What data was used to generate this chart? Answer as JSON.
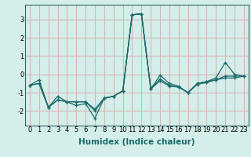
{
  "title": "",
  "xlabel": "Humidex (Indice chaleur)",
  "ylabel": "",
  "background_color": "#d4eeea",
  "grid_color": "#d4b8b8",
  "line_color": "#1a6b6b",
  "x": [
    0,
    1,
    2,
    3,
    4,
    5,
    6,
    7,
    8,
    9,
    10,
    11,
    12,
    13,
    14,
    15,
    16,
    17,
    18,
    19,
    20,
    21,
    22,
    23
  ],
  "series": [
    [
      -0.6,
      -0.3,
      -1.8,
      -1.2,
      -1.5,
      -1.7,
      -1.6,
      -2.4,
      -1.3,
      -1.2,
      -0.9,
      3.25,
      3.3,
      -0.8,
      -0.05,
      -0.5,
      -0.65,
      -1.0,
      -0.5,
      -0.4,
      -0.2,
      0.65,
      0.0,
      -0.1
    ],
    [
      -0.6,
      -0.5,
      -1.8,
      -1.4,
      -1.5,
      -1.5,
      -1.5,
      -1.9,
      -1.3,
      -1.2,
      -0.9,
      3.25,
      3.3,
      -0.8,
      -0.25,
      -0.6,
      -0.7,
      -1.0,
      -0.5,
      -0.4,
      -0.3,
      -0.1,
      -0.1,
      -0.1
    ],
    [
      -0.6,
      -0.5,
      -1.8,
      -1.4,
      -1.5,
      -1.5,
      -1.5,
      -2.0,
      -1.3,
      -1.2,
      -0.9,
      3.25,
      3.3,
      -0.8,
      -0.35,
      -0.65,
      -0.7,
      -1.0,
      -0.55,
      -0.45,
      -0.3,
      -0.2,
      -0.2,
      -0.1
    ]
  ],
  "xlim": [
    -0.5,
    23.5
  ],
  "ylim": [
    -2.8,
    3.8
  ],
  "yticks": [
    -2,
    -1,
    0,
    1,
    2,
    3
  ],
  "xticks": [
    0,
    1,
    2,
    3,
    4,
    5,
    6,
    7,
    8,
    9,
    10,
    11,
    12,
    13,
    14,
    15,
    16,
    17,
    18,
    19,
    20,
    21,
    22,
    23
  ],
  "fontsize_ticks": 6,
  "fontsize_label": 7.5
}
